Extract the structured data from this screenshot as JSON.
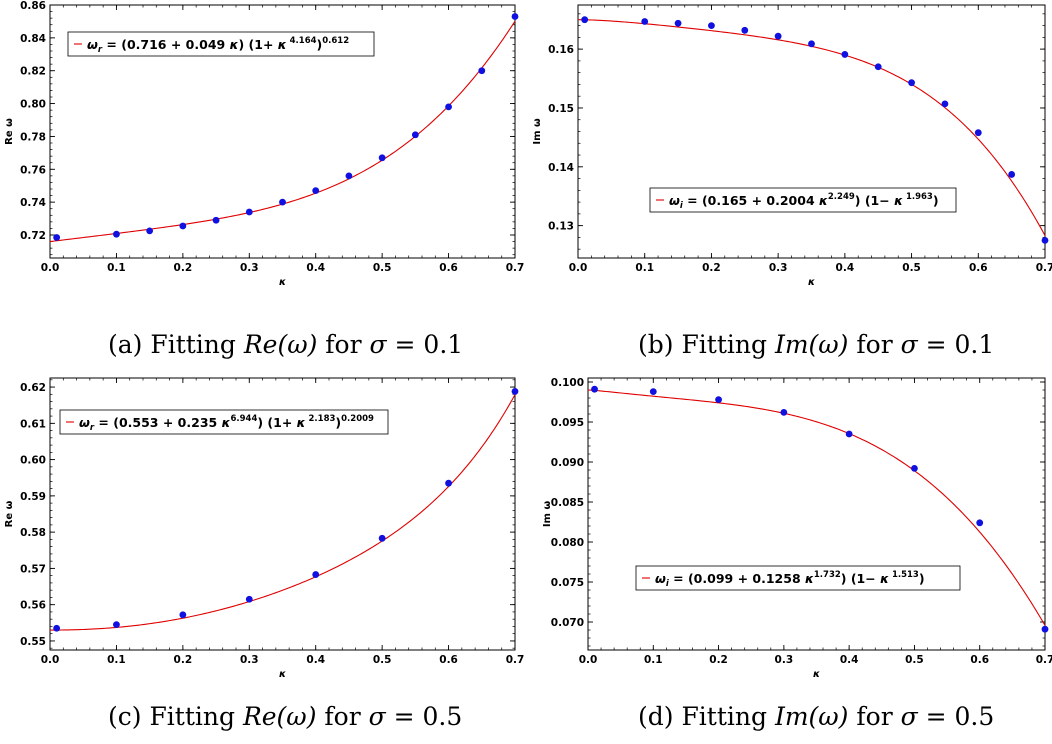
{
  "chart_data": [
    {
      "type": "scatter",
      "ylabel": "Re ω",
      "xlabel": "κ",
      "xlim": [
        0,
        0.7
      ],
      "ylim": [
        0.706,
        0.86
      ],
      "xticks": [
        0.0,
        0.1,
        0.2,
        0.3,
        0.4,
        0.5,
        0.6,
        0.7
      ],
      "yticks": [
        0.72,
        0.74,
        0.76,
        0.78,
        0.8,
        0.82,
        0.84,
        0.86
      ],
      "xticklabels": [
        "0.0",
        "0.1",
        "0.2",
        "0.3",
        "0.4",
        "0.5",
        "0.6",
        "0.7"
      ],
      "yticklabels": [
        "0.72",
        "0.74",
        "0.76",
        "0.78",
        "0.80",
        "0.82",
        "0.84",
        "0.86"
      ],
      "legend_location": "top-left",
      "colors": {
        "points": "#1010e0",
        "fit": "#e00000"
      },
      "fit": {
        "name": "ω_r = (0.716 + 0.049 κ) (1+ κ^4.164)^0.612",
        "form": "real",
        "a": 0.716,
        "b": 0.049,
        "p": 1,
        "q": 4.164,
        "r": 0.612
      },
      "legend_parts": {
        "lhs": "ω",
        "sub": "r",
        "t1": " = (0.716 + 0.049 ",
        "t2": "κ",
        "t3": ") (1+ ",
        "t4": "κ",
        "sup1": "4.164",
        "t5": ")",
        "sup2": "0.612"
      },
      "series": [
        {
          "x": [
            0.01,
            0.1,
            0.15,
            0.2,
            0.25,
            0.3,
            0.35,
            0.4,
            0.45,
            0.5,
            0.55,
            0.6,
            0.65,
            0.7
          ],
          "y": [
            0.7185,
            0.7205,
            0.7225,
            0.7255,
            0.729,
            0.734,
            0.74,
            0.747,
            0.756,
            0.767,
            0.781,
            0.798,
            0.82,
            0.853
          ]
        }
      ],
      "caption": {
        "prefix": "(a) Fitting ",
        "math": "Re(ω)",
        "mid": " for ",
        "var": "σ",
        "rest": " = 0.1"
      }
    },
    {
      "type": "scatter",
      "ylabel": "Im ω",
      "xlabel": "κ",
      "xlim": [
        0,
        0.7
      ],
      "ylim": [
        0.1245,
        0.1675
      ],
      "xticks": [
        0.0,
        0.1,
        0.2,
        0.3,
        0.4,
        0.5,
        0.6,
        0.7
      ],
      "yticks": [
        0.13,
        0.14,
        0.15,
        0.16
      ],
      "xticklabels": [
        "0.0",
        "0.1",
        "0.2",
        "0.3",
        "0.4",
        "0.5",
        "0.6",
        "0.7"
      ],
      "yticklabels": [
        "0.13",
        "0.14",
        "0.15",
        "0.16"
      ],
      "legend_location": "bottom-left",
      "colors": {
        "points": "#1010e0",
        "fit": "#e00000"
      },
      "fit": {
        "name": "ω_i = (0.165 + 0.2004 κ^2.249) (1− κ^1.963)",
        "form": "imag",
        "a": 0.165,
        "b": 0.2004,
        "p": 2.249,
        "q": 1.963
      },
      "legend_parts": {
        "lhs": "ω",
        "sub": "i",
        "t1": " = (0.165 + 0.2004 ",
        "t2": "κ",
        "sup1": "2.249",
        "t3": ") (1− ",
        "t4": "κ",
        "sup2": "1.963",
        "t5": ")"
      },
      "series": [
        {
          "x": [
            0.01,
            0.1,
            0.15,
            0.2,
            0.25,
            0.3,
            0.35,
            0.4,
            0.45,
            0.5,
            0.55,
            0.6,
            0.65,
            0.7
          ],
          "y": [
            0.165,
            0.1647,
            0.1644,
            0.164,
            0.1632,
            0.1622,
            0.1609,
            0.1591,
            0.157,
            0.1543,
            0.1507,
            0.1458,
            0.1387,
            0.1275
          ]
        }
      ],
      "caption": {
        "prefix": "(b) Fitting ",
        "math": "Im(ω)",
        "mid": " for ",
        "var": "σ",
        "rest": " = 0.1"
      }
    },
    {
      "type": "scatter",
      "ylabel": "Re ω",
      "xlabel": "κ",
      "xlim": [
        0,
        0.7
      ],
      "ylim": [
        0.5475,
        0.6225
      ],
      "xticks": [
        0.0,
        0.1,
        0.2,
        0.3,
        0.4,
        0.5,
        0.6,
        0.7
      ],
      "yticks": [
        0.55,
        0.56,
        0.57,
        0.58,
        0.59,
        0.6,
        0.61,
        0.62
      ],
      "xticklabels": [
        "0.0",
        "0.1",
        "0.2",
        "0.3",
        "0.4",
        "0.5",
        "0.6",
        "0.7"
      ],
      "yticklabels": [
        "0.55",
        "0.56",
        "0.57",
        "0.58",
        "0.59",
        "0.60",
        "0.61",
        "0.62"
      ],
      "legend_location": "top-left",
      "colors": {
        "points": "#1010e0",
        "fit": "#e00000"
      },
      "fit": {
        "name": "ω_r = (0.553 + 0.235 κ^6.944) (1+ κ^2.183)^0.2009",
        "form": "real",
        "a": 0.553,
        "b": 0.235,
        "p": 6.944,
        "q": 2.183,
        "r": 0.2009
      },
      "legend_parts": {
        "lhs": "ω",
        "sub": "r",
        "t1": " = (0.553 + 0.235 ",
        "t2": "κ",
        "sup0": "6.944",
        "t3": ") (1+ ",
        "t4": "κ",
        "sup1": "2.183",
        "t5": ")",
        "sup2": "0.2009"
      },
      "series": [
        {
          "x": [
            0.01,
            0.1,
            0.2,
            0.3,
            0.4,
            0.5,
            0.6,
            0.7
          ],
          "y": [
            0.5535,
            0.5545,
            0.5572,
            0.5615,
            0.5683,
            0.5783,
            0.5935,
            0.6188
          ]
        }
      ],
      "caption": {
        "prefix": "(c) Fitting ",
        "math": "Re(ω)",
        "mid": " for ",
        "var": "σ",
        "rest": " = 0.5"
      }
    },
    {
      "type": "scatter",
      "ylabel": "Im ω",
      "xlabel": "κ",
      "xlim": [
        0,
        0.7
      ],
      "ylim": [
        0.0665,
        0.1005
      ],
      "xticks": [
        0.0,
        0.1,
        0.2,
        0.3,
        0.4,
        0.5,
        0.6,
        0.7
      ],
      "yticks": [
        0.07,
        0.075,
        0.08,
        0.085,
        0.09,
        0.095,
        0.1
      ],
      "xticklabels": [
        "0.0",
        "0.1",
        "0.2",
        "0.3",
        "0.4",
        "0.5",
        "0.6",
        "0.7"
      ],
      "yticklabels": [
        "0.070",
        "0.075",
        "0.080",
        "0.085",
        "0.090",
        "0.095",
        "0.100"
      ],
      "legend_location": "bottom-left",
      "colors": {
        "points": "#1010e0",
        "fit": "#e00000"
      },
      "fit": {
        "name": "ω_i = (0.099 + 0.1258 κ^1.732) (1− κ^1.513)",
        "form": "imag",
        "a": 0.099,
        "b": 0.1258,
        "p": 1.732,
        "q": 1.513
      },
      "legend_parts": {
        "lhs": "ω",
        "sub": "i",
        "t1": " = (0.099 + 0.1258 ",
        "t2": "κ",
        "sup1": "1.732",
        "t3": ") (1− ",
        "t4": "κ",
        "sup2": "1.513",
        "t5": ")"
      },
      "series": [
        {
          "x": [
            0.01,
            0.1,
            0.2,
            0.3,
            0.4,
            0.5,
            0.6,
            0.7
          ],
          "y": [
            0.0991,
            0.0988,
            0.0978,
            0.0962,
            0.0935,
            0.0892,
            0.0824,
            0.0691
          ]
        }
      ],
      "caption": {
        "prefix": "(d) Fitting ",
        "math": "Im(ω)",
        "mid": " for ",
        "var": "σ",
        "rest": " = 0.5"
      }
    }
  ]
}
